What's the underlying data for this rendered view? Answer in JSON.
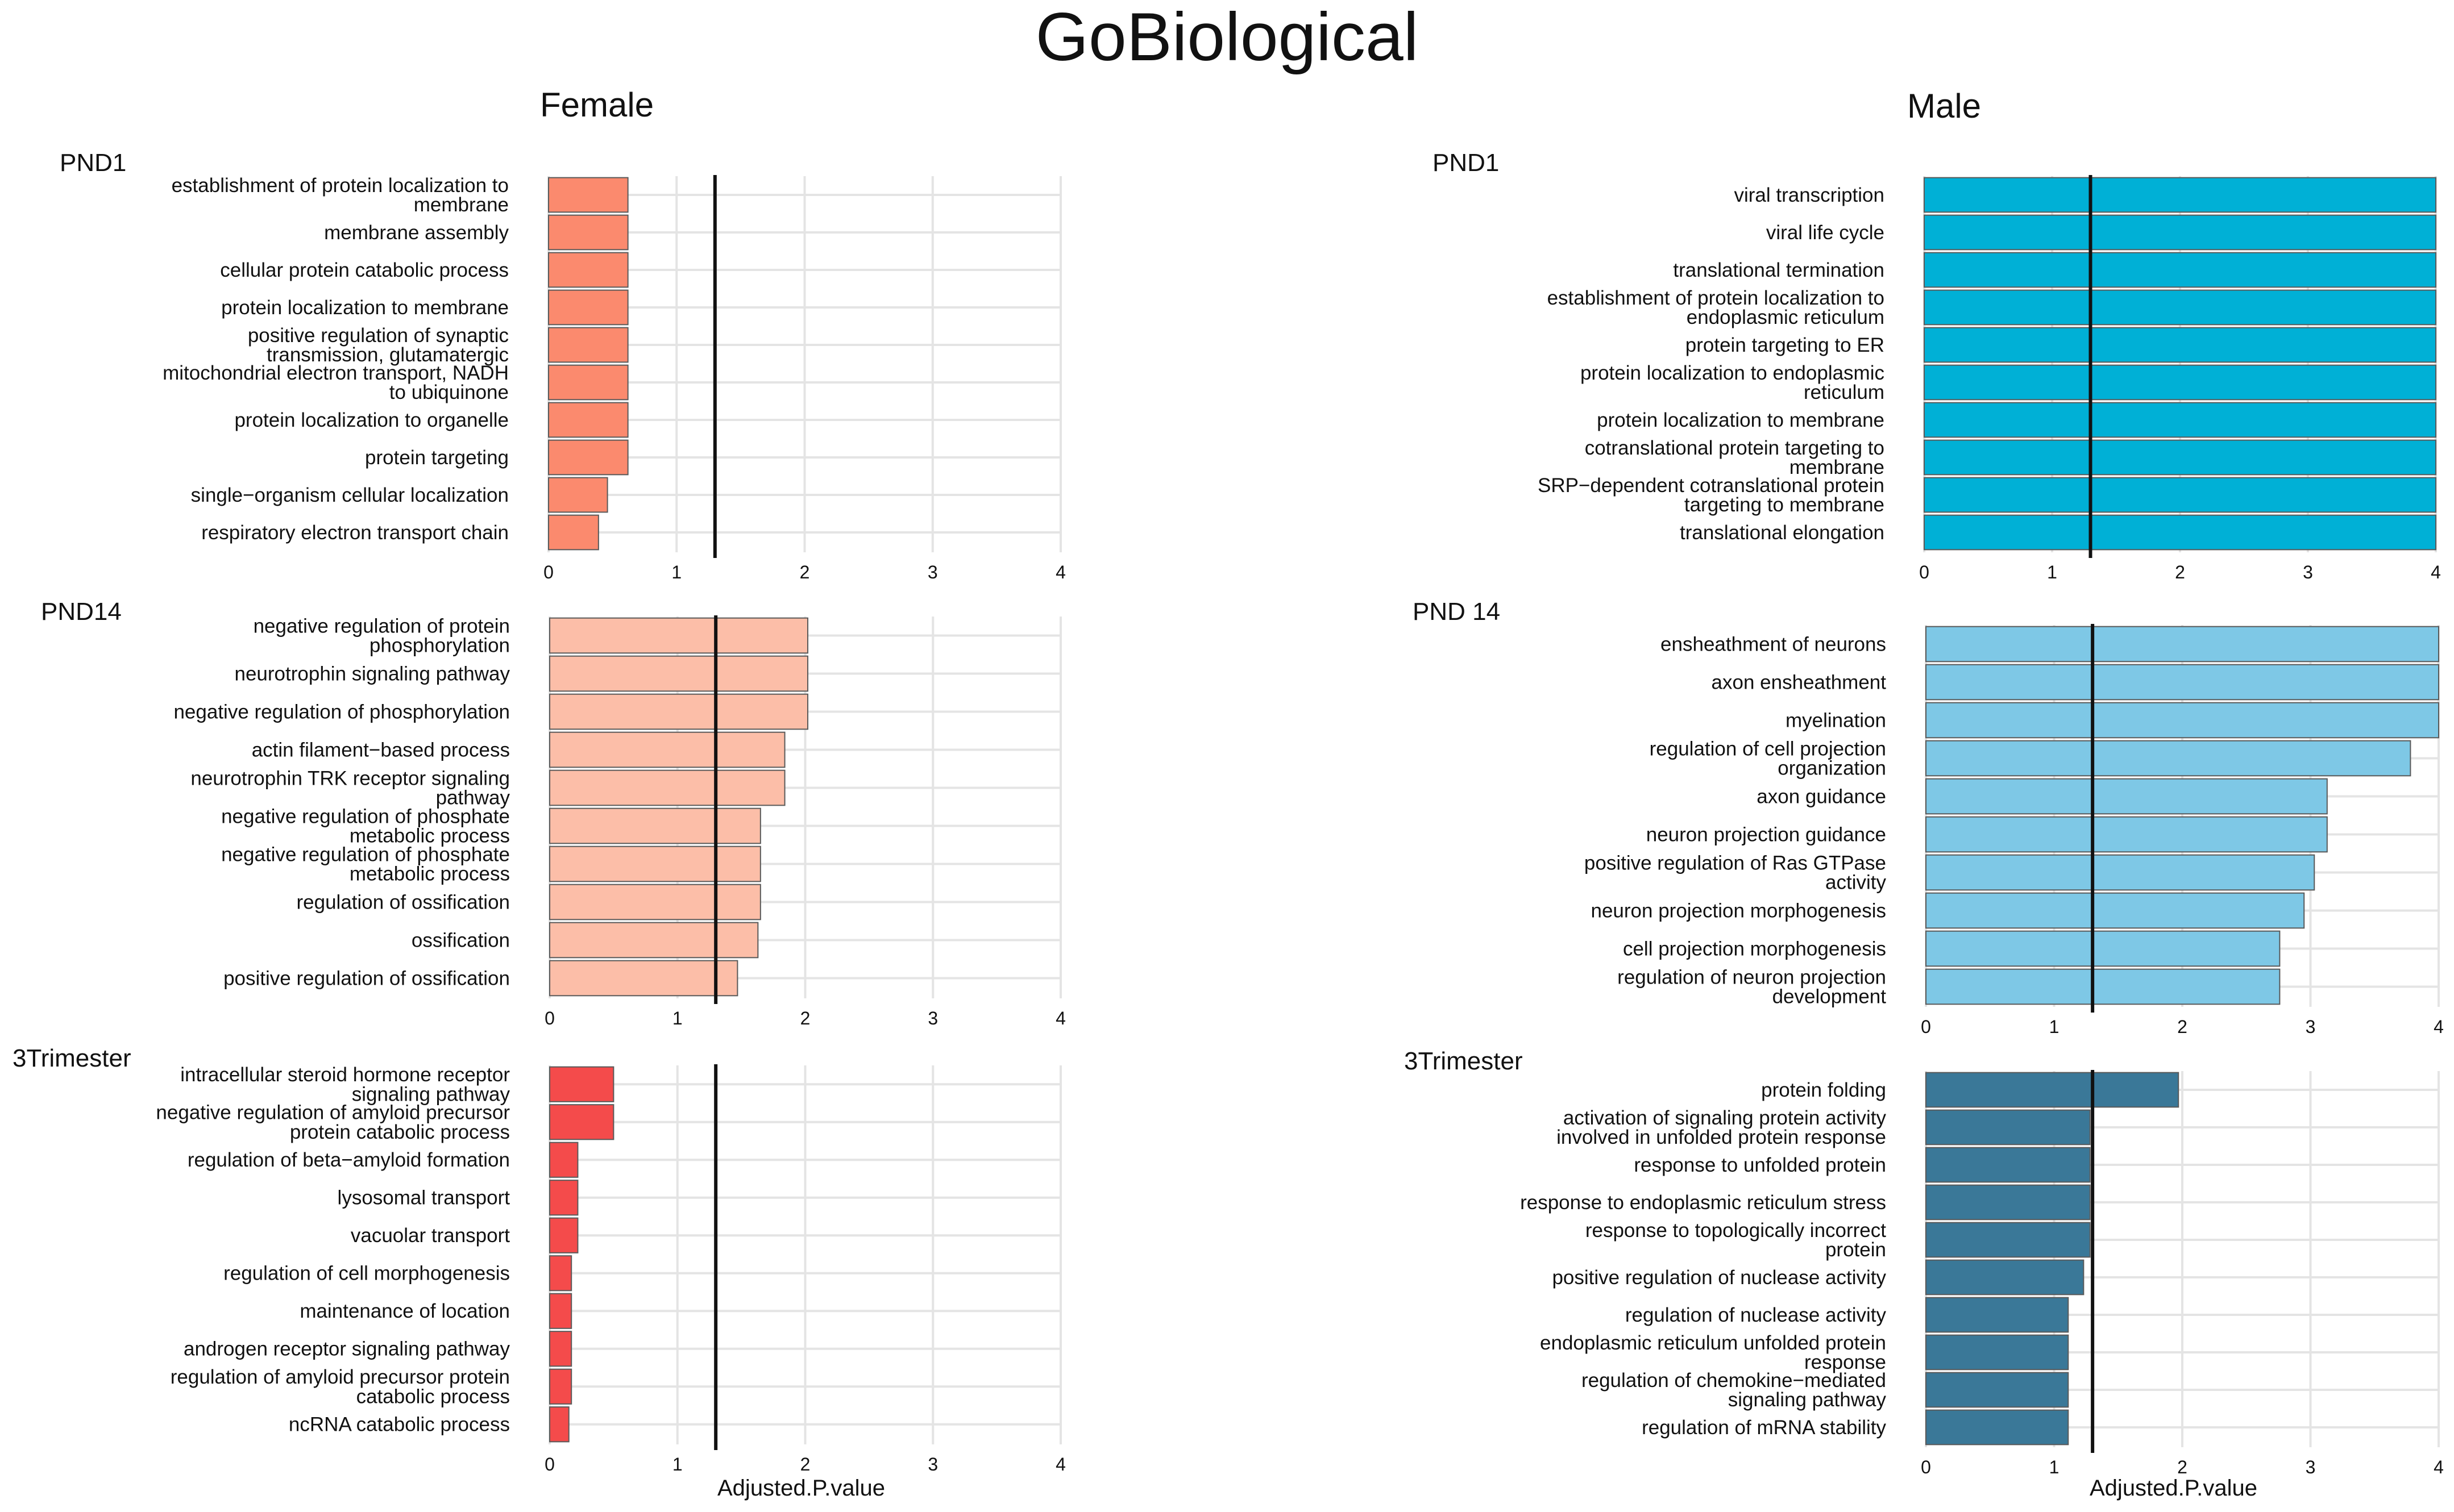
{
  "figure": {
    "title": "GoBiological",
    "female_label": "Female",
    "male_label": "Male",
    "xlabel": "Adjusted.P.value",
    "threshold_label_value": 1.3
  },
  "colors": {
    "female_pnd1": "#fb8a6e",
    "female_pnd14": "#fcbea8",
    "female_3tri": "#f44b4b",
    "male_pnd1": "#00b0d6",
    "male_pnd14": "#7ec8e6",
    "male_3tri": "#3a7898",
    "grid": "#e4e4e4",
    "threshold": "#111111"
  },
  "chart_data": [
    {
      "type": "bar",
      "orientation": "horizontal",
      "sex": "Female",
      "title": "PND1",
      "xlabel": "",
      "xlim": [
        0,
        4
      ],
      "xticks": [
        "0",
        "1",
        "2",
        "3",
        "4"
      ],
      "threshold": 1.3,
      "categories": [
        "establishment of protein localization to\nmembrane",
        "membrane assembly",
        "cellular protein catabolic process",
        "protein localization to membrane",
        "positive regulation of synaptic\ntransmission, glutamatergic",
        "mitochondrial electron transport, NADH\nto ubiquinone",
        "protein localization to organelle",
        "protein targeting",
        "single−organism cellular localization",
        "respiratory electron transport chain"
      ],
      "values": [
        0.62,
        0.62,
        0.62,
        0.62,
        0.62,
        0.62,
        0.62,
        0.62,
        0.46,
        0.39
      ]
    },
    {
      "type": "bar",
      "orientation": "horizontal",
      "sex": "Female",
      "title": "PND14",
      "xlabel": "",
      "xlim": [
        0,
        4
      ],
      "xticks": [
        "0",
        "1",
        "2",
        "3",
        "4"
      ],
      "threshold": 1.3,
      "categories": [
        "negative regulation of protein\nphosphorylation",
        "neurotrophin signaling pathway",
        "negative regulation of phosphorylation",
        "actin filament−based process",
        "neurotrophin TRK receptor signaling\npathway",
        "negative regulation of phosphate\nmetabolic process",
        "negative regulation of phosphate\nmetabolic process",
        "regulation of ossification",
        "ossification",
        "positive regulation of ossification"
      ],
      "values": [
        2.02,
        2.02,
        2.02,
        1.84,
        1.84,
        1.65,
        1.65,
        1.65,
        1.63,
        1.47
      ]
    },
    {
      "type": "bar",
      "orientation": "horizontal",
      "sex": "Female",
      "title": "3Trimester",
      "xlabel": "Adjusted.P.value",
      "xlim": [
        0,
        4
      ],
      "xticks": [
        "0",
        "1",
        "2",
        "3",
        "4"
      ],
      "threshold": 1.3,
      "categories": [
        "intracellular steroid hormone receptor\nsignaling pathway",
        "negative regulation of amyloid precursor\nprotein catabolic process",
        "regulation of beta−amyloid formation",
        "lysosomal transport",
        "vacuolar transport",
        "regulation of cell morphogenesis",
        "maintenance of location",
        "androgen receptor signaling pathway",
        "regulation of amyloid precursor protein\ncatabolic process",
        "ncRNA catabolic process"
      ],
      "values": [
        0.5,
        0.5,
        0.22,
        0.22,
        0.22,
        0.17,
        0.17,
        0.17,
        0.17,
        0.15
      ]
    },
    {
      "type": "bar",
      "orientation": "horizontal",
      "sex": "Male",
      "title": "PND1",
      "xlabel": "",
      "xlim": [
        0,
        4
      ],
      "xticks": [
        "0",
        "1",
        "2",
        "3",
        "4"
      ],
      "threshold": 1.3,
      "categories": [
        "viral transcription",
        "viral life cycle",
        "translational termination",
        "establishment of protein localization to\nendoplasmic reticulum",
        "protein targeting to ER",
        "protein localization to endoplasmic\nreticulum",
        "protein localization to membrane",
        "cotranslational protein targeting to\nmembrane",
        "SRP−dependent cotranslational protein\ntargeting to membrane",
        "translational elongation"
      ],
      "values": [
        4,
        4,
        4,
        4,
        4,
        4,
        4,
        4,
        4,
        4
      ]
    },
    {
      "type": "bar",
      "orientation": "horizontal",
      "sex": "Male",
      "title": "PND 14",
      "xlabel": "",
      "xlim": [
        0,
        4
      ],
      "xticks": [
        "0",
        "1",
        "2",
        "3",
        "4"
      ],
      "threshold": 1.3,
      "categories": [
        "ensheathment of neurons",
        "axon ensheathment",
        "myelination",
        "regulation of cell projection\norganization",
        "axon guidance",
        "neuron projection guidance",
        "positive regulation of Ras GTPase\nactivity",
        "neuron projection morphogenesis",
        "cell projection morphogenesis",
        "regulation of neuron projection\ndevelopment"
      ],
      "values": [
        4.0,
        4.0,
        4.0,
        3.78,
        3.13,
        3.13,
        3.03,
        2.95,
        2.76,
        2.76
      ]
    },
    {
      "type": "bar",
      "orientation": "horizontal",
      "sex": "Male",
      "title": "3Trimester",
      "xlabel": "Adjusted.P.value",
      "xlim": [
        0,
        4
      ],
      "xticks": [
        "0",
        "1",
        "2",
        "3",
        "4"
      ],
      "threshold": 1.3,
      "categories": [
        "protein folding",
        "activation of signaling protein activity\ninvolved in unfolded protein response",
        "response to unfolded protein",
        "response to endoplasmic reticulum stress",
        "response to topologically incorrect\nprotein",
        "positive regulation of nuclease activity",
        "regulation of nuclease activity",
        "endoplasmic reticulum unfolded protein\nresponse",
        "regulation of chemokine−mediated\nsignaling pathway",
        "regulation of mRNA stability"
      ],
      "values": [
        1.97,
        1.28,
        1.28,
        1.28,
        1.28,
        1.23,
        1.11,
        1.11,
        1.11,
        1.11
      ]
    }
  ]
}
